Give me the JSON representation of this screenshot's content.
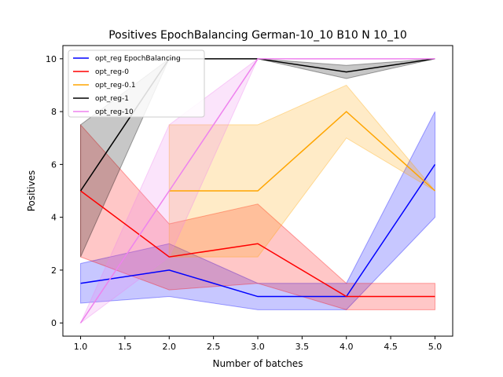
{
  "chart_data": {
    "type": "line",
    "title": "Positives EpochBalancing German-10_10 B10 N 10_10",
    "xlabel": "Number of batches",
    "ylabel": "Positives",
    "xlim": [
      0.8,
      5.2
    ],
    "ylim": [
      -0.5,
      10.5
    ],
    "xticks": [
      1.0,
      1.5,
      2.0,
      2.5,
      3.0,
      3.5,
      4.0,
      4.5,
      5.0
    ],
    "xtick_labels": [
      "1.0",
      "1.5",
      "2.0",
      "2.5",
      "3.0",
      "3.5",
      "4.0",
      "4.5",
      "5.0"
    ],
    "yticks": [
      0,
      2,
      4,
      6,
      8,
      10
    ],
    "ytick_labels": [
      "0",
      "2",
      "4",
      "6",
      "8",
      "10"
    ],
    "grid": false,
    "legend_position": "top-left",
    "series": [
      {
        "name": "opt_reg EpochBalancing",
        "color": "#0000ff",
        "x": [
          1,
          2,
          3,
          4,
          5
        ],
        "y": [
          1.5,
          2,
          1,
          1,
          6
        ],
        "lower": [
          0.75,
          1,
          0.5,
          0.5,
          4
        ],
        "upper": [
          2.25,
          3,
          1.5,
          1.5,
          8
        ]
      },
      {
        "name": "opt_reg-0",
        "color": "#ff0000",
        "x": [
          1,
          2,
          3,
          4,
          5
        ],
        "y": [
          5,
          2.5,
          3,
          1,
          1
        ],
        "lower": [
          2.5,
          1.25,
          1.5,
          0.5,
          0.5
        ],
        "upper": [
          7.5,
          3.75,
          4.5,
          1.5,
          1.5
        ]
      },
      {
        "name": "opt_reg-0.1",
        "color": "#ffa500",
        "x": [
          2,
          3,
          4,
          5
        ],
        "y": [
          5,
          5,
          8,
          5
        ],
        "lower": [
          2.5,
          2.5,
          7,
          5
        ],
        "upper": [
          7.5,
          7.5,
          9,
          5
        ]
      },
      {
        "name": "opt_reg-1",
        "color": "#000000",
        "x": [
          1,
          2,
          3,
          4,
          5
        ],
        "y": [
          5,
          10,
          10,
          9.5,
          10
        ],
        "lower": [
          2.5,
          10,
          10,
          9.25,
          10
        ],
        "upper": [
          7.5,
          10,
          10,
          9.75,
          10
        ]
      },
      {
        "name": "opt_reg-10",
        "color": "#ee82ee",
        "x": [
          1,
          2,
          3,
          4,
          5
        ],
        "y": [
          0,
          5,
          10,
          10,
          10
        ],
        "lower": [
          0,
          2.5,
          10,
          10,
          10
        ],
        "upper": [
          0,
          7.5,
          10,
          10,
          10
        ]
      }
    ]
  }
}
